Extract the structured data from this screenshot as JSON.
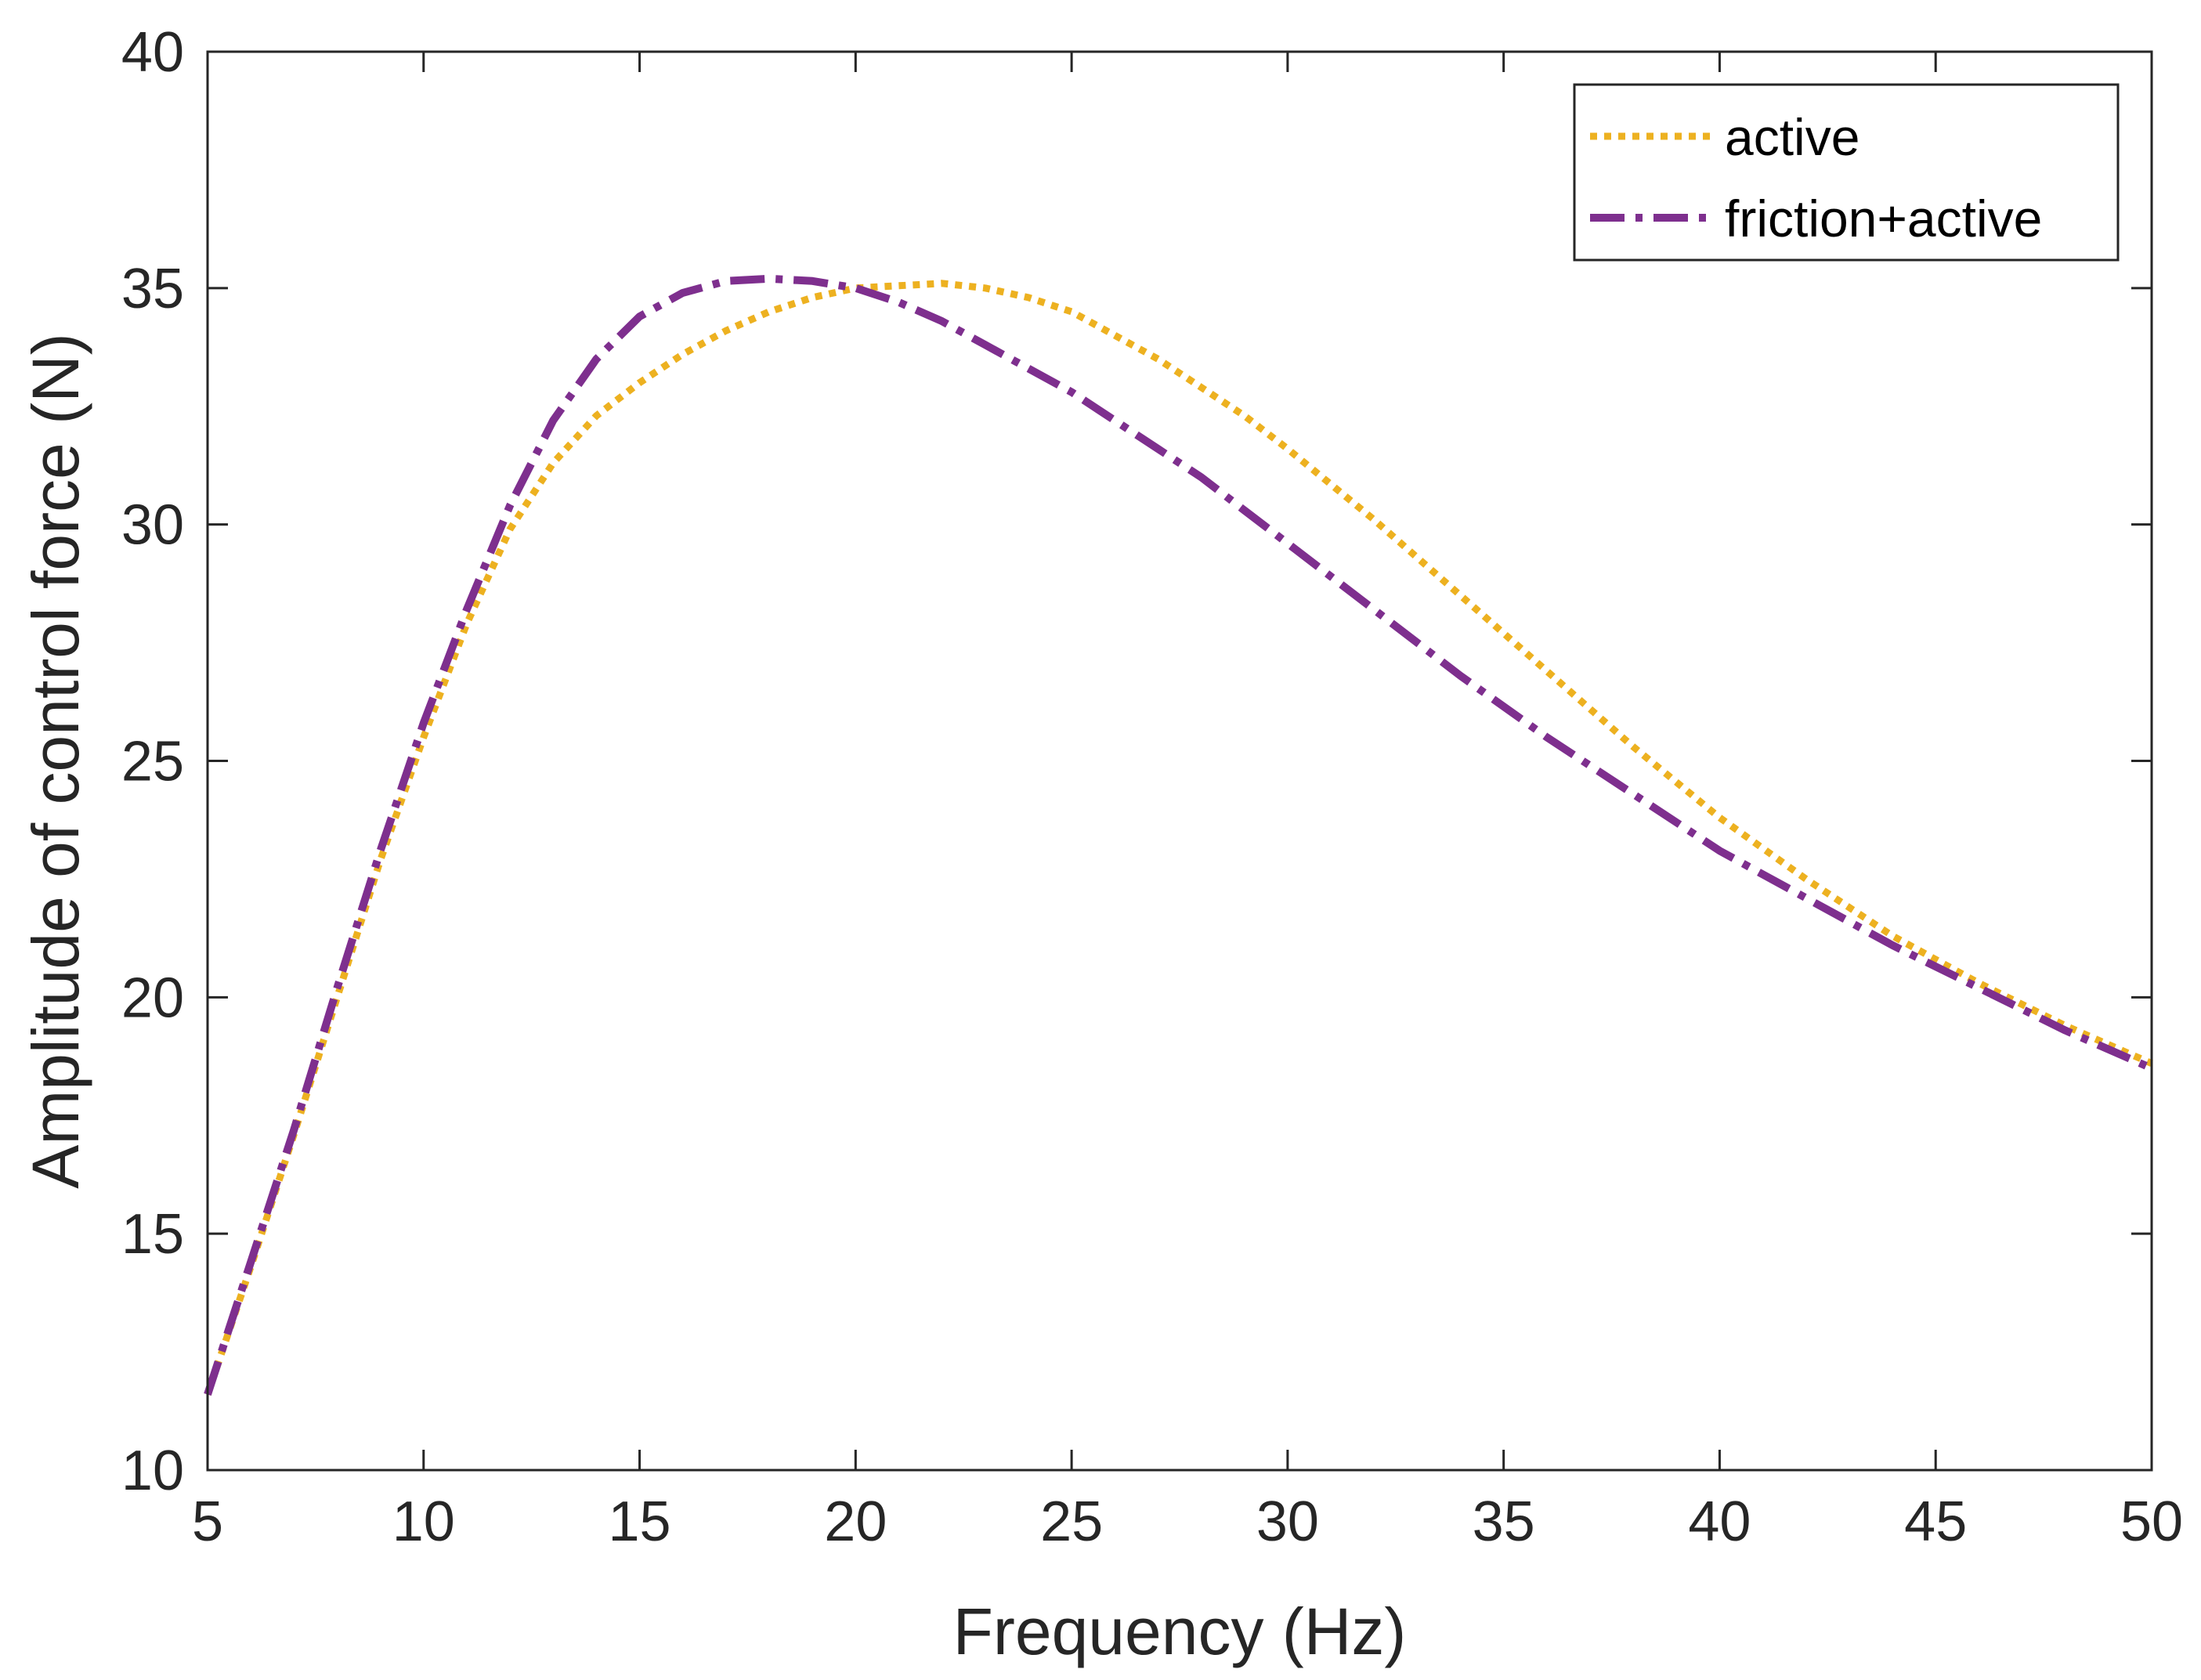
{
  "chart_data": {
    "type": "line",
    "title": "",
    "xlabel": "Frequency (Hz)",
    "ylabel": "Amplitude of control force (N)",
    "xlim": [
      5,
      50
    ],
    "ylim": [
      10,
      40
    ],
    "xticks": [
      5,
      10,
      15,
      20,
      25,
      30,
      35,
      40,
      45,
      50
    ],
    "yticks": [
      10,
      15,
      20,
      25,
      30,
      35,
      40
    ],
    "xtick_labels": [
      "5",
      "10",
      "15",
      "20",
      "25",
      "30",
      "35",
      "40",
      "45",
      "50"
    ],
    "ytick_labels": [
      "10",
      "15",
      "20",
      "25",
      "30",
      "35",
      "40"
    ],
    "grid": false,
    "legend_position": "top-right",
    "series": [
      {
        "name": "active",
        "color": "#EDB120",
        "style": "dotted",
        "x": [
          5,
          6,
          7,
          8,
          9,
          10,
          11,
          12,
          13,
          14,
          15,
          16,
          17,
          18,
          19,
          20,
          21,
          22,
          23,
          24,
          25,
          26,
          27,
          28,
          29,
          30,
          32,
          34,
          36,
          38,
          40,
          42,
          44,
          46,
          48,
          50
        ],
        "y": [
          11.6,
          14.3,
          17.1,
          20.0,
          22.9,
          25.5,
          27.9,
          29.9,
          31.3,
          32.3,
          33.0,
          33.6,
          34.1,
          34.5,
          34.8,
          35.0,
          35.05,
          35.1,
          35.0,
          34.8,
          34.5,
          34.0,
          33.5,
          32.9,
          32.3,
          31.6,
          30.1,
          28.5,
          26.9,
          25.3,
          23.8,
          22.5,
          21.3,
          20.3,
          19.4,
          18.6
        ]
      },
      {
        "name": "friction+active",
        "color": "#7E2F8E",
        "style": "dashdot",
        "x": [
          5,
          6,
          7,
          8,
          9,
          10,
          11,
          12,
          13,
          14,
          15,
          16,
          17,
          18,
          19,
          20,
          21,
          22,
          23,
          24,
          25,
          26,
          27,
          28,
          29,
          30,
          32,
          34,
          36,
          38,
          40,
          42,
          44,
          46,
          48,
          50
        ],
        "y": [
          11.6,
          14.4,
          17.2,
          20.2,
          23.1,
          25.8,
          28.2,
          30.4,
          32.2,
          33.5,
          34.4,
          34.9,
          35.15,
          35.2,
          35.15,
          35.0,
          34.7,
          34.3,
          33.8,
          33.3,
          32.8,
          32.2,
          31.6,
          31.0,
          30.3,
          29.6,
          28.2,
          26.8,
          25.5,
          24.3,
          23.1,
          22.1,
          21.1,
          20.2,
          19.3,
          18.5
        ]
      }
    ]
  }
}
